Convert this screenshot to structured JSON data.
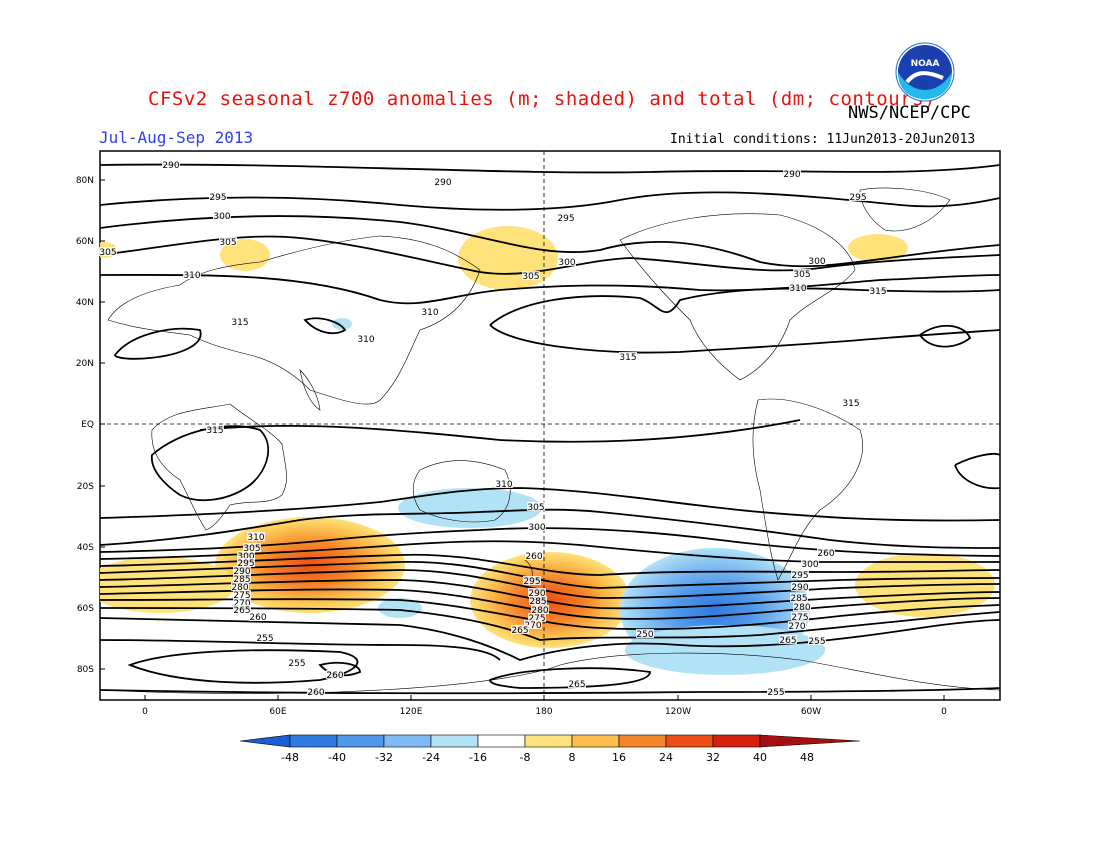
{
  "header": {
    "title": "CFSv2 seasonal z700 anomalies (m; shaded) and total (dm; contours)",
    "agency": "NWS/NCEP/CPC",
    "season": "Jul-Aug-Sep 2013",
    "initial_conditions": "Initial conditions: 11Jun2013-20Jun2013",
    "logo_text": "NOAA"
  },
  "map": {
    "lat_ticks": [
      "80N",
      "60N",
      "40N",
      "20N",
      "EQ",
      "20S",
      "40S",
      "60S",
      "80S"
    ],
    "lon_ticks": [
      "0",
      "60E",
      "120E",
      "180",
      "120W",
      "60W",
      "0"
    ],
    "contour_labels": [
      "290",
      "290",
      "290",
      "295",
      "295",
      "295",
      "300",
      "300",
      "300",
      "305",
      "305",
      "305",
      "305",
      "310",
      "310",
      "310",
      "310",
      "315",
      "315",
      "315",
      "315",
      "315",
      "310",
      "305",
      "300",
      "310",
      "305",
      "300",
      "295",
      "290",
      "285",
      "280",
      "275",
      "270",
      "265",
      "260",
      "255",
      "255",
      "255",
      "260",
      "260",
      "265",
      "250",
      "255",
      "260",
      "300",
      "295",
      "290",
      "285",
      "280",
      "275",
      "270",
      "265",
      "260",
      "295",
      "290",
      "285",
      "280",
      "275",
      "270",
      "265",
      "260"
    ]
  },
  "colorbar": {
    "levels": [
      "-48",
      "-40",
      "-32",
      "-24",
      "-16",
      "-8",
      "8",
      "16",
      "24",
      "32",
      "40",
      "48"
    ],
    "colors": [
      "#1a5fd6",
      "#2f7be0",
      "#4f98ea",
      "#7fbbf2",
      "#b2e2f6",
      "#ffffff",
      "#ffe27a",
      "#fcbd4d",
      "#f6862a",
      "#ec4f14",
      "#d4200c",
      "#a50f0f"
    ]
  }
}
